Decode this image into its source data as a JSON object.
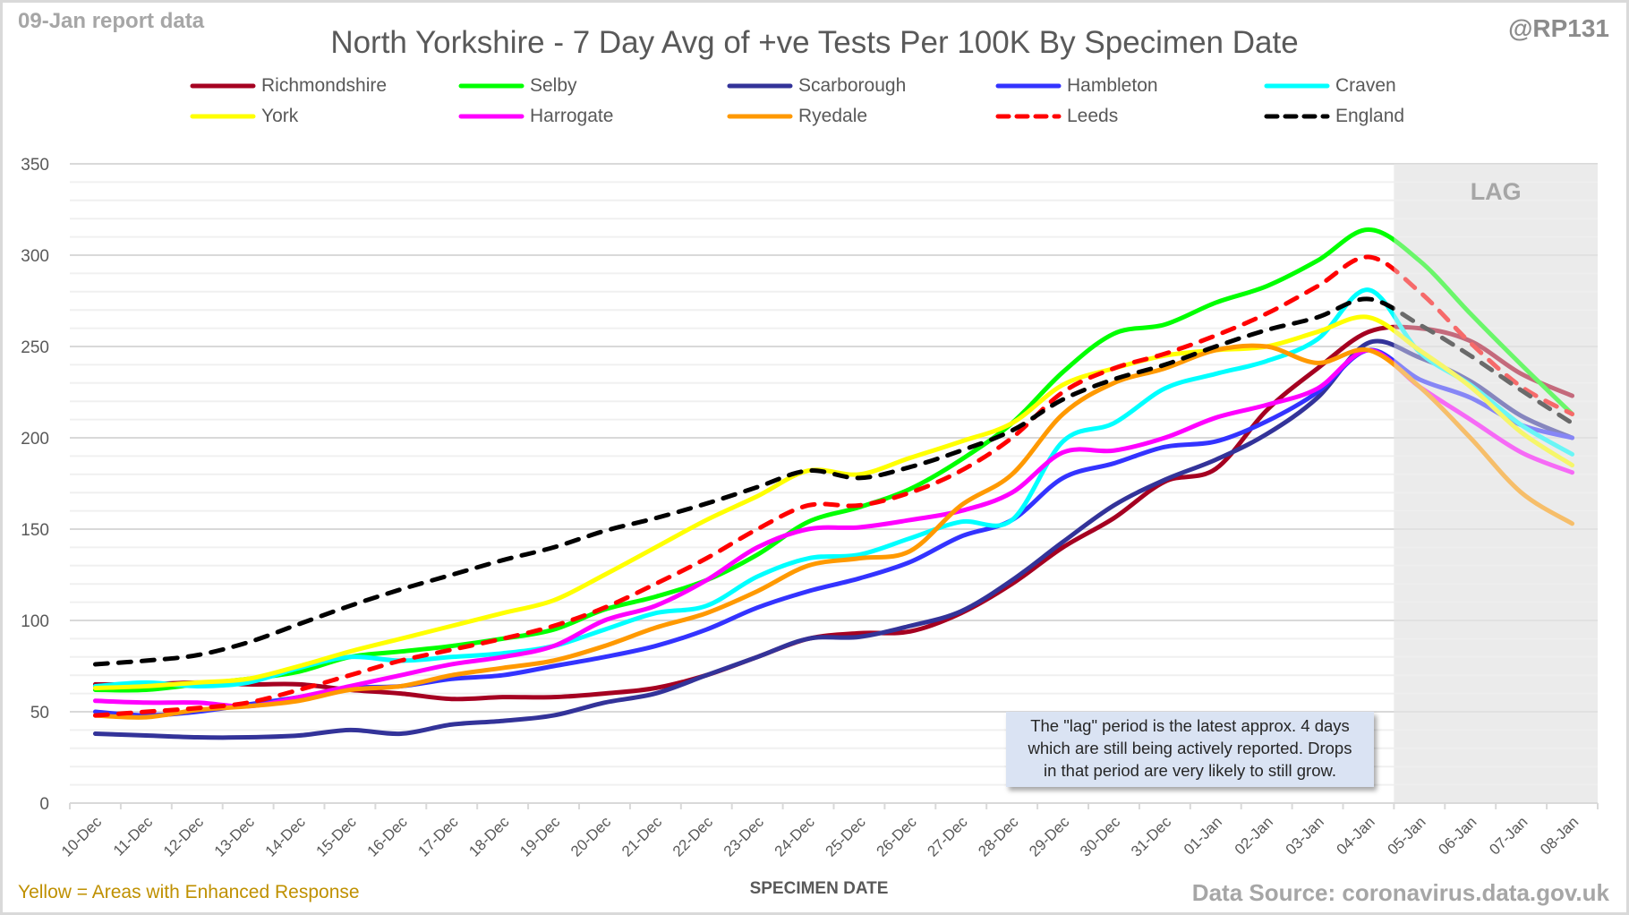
{
  "header": {
    "report_date": "09-Jan report data",
    "handle": "@RP131"
  },
  "footer": {
    "note": "Yellow = Areas with Enhanced Response",
    "source": "Data Source: coronavirus.data.gov.uk"
  },
  "annotation": {
    "lines": [
      "The \"lag\" period is the latest approx. 4 days",
      "which are still being actively reported.  Drops",
      "in that period are very likely to still grow."
    ]
  },
  "chart_data": {
    "type": "line",
    "title": "North Yorkshire - 7 Day Avg of +ve Tests Per 100K By Specimen Date",
    "xlabel": "SPECIMEN DATE",
    "ylabel": "",
    "ylim": [
      0,
      350
    ],
    "y_ticks": [
      0,
      50,
      100,
      150,
      200,
      250,
      300,
      350
    ],
    "y_minor_step": 10,
    "grid": true,
    "legend_position": "top",
    "lag_region": {
      "label": "LAG",
      "start": "05-Jan",
      "end": "08-Jan",
      "color": "#ebebeb"
    },
    "categories": [
      "10-Dec",
      "11-Dec",
      "12-Dec",
      "13-Dec",
      "14-Dec",
      "15-Dec",
      "16-Dec",
      "17-Dec",
      "18-Dec",
      "19-Dec",
      "20-Dec",
      "21-Dec",
      "22-Dec",
      "23-Dec",
      "24-Dec",
      "25-Dec",
      "26-Dec",
      "27-Dec",
      "28-Dec",
      "29-Dec",
      "30-Dec",
      "31-Dec",
      "01-Jan",
      "02-Jan",
      "03-Jan",
      "04-Jan",
      "05-Jan",
      "06-Jan",
      "07-Jan",
      "08-Jan"
    ],
    "series": [
      {
        "name": "Richmondshire",
        "color": "#a50021",
        "dash": false,
        "values": [
          65,
          65,
          66,
          65,
          65,
          62,
          60,
          57,
          58,
          58,
          60,
          63,
          70,
          80,
          90,
          93,
          94,
          104,
          120,
          140,
          156,
          176,
          183,
          215,
          238,
          258,
          260,
          253,
          235,
          223
        ]
      },
      {
        "name": "Selby",
        "color": "#00ff00",
        "dash": false,
        "values": [
          62,
          62,
          65,
          68,
          72,
          80,
          83,
          86,
          90,
          95,
          106,
          113,
          122,
          136,
          154,
          162,
          172,
          188,
          208,
          236,
          257,
          262,
          274,
          283,
          297,
          314,
          297,
          268,
          240,
          213
        ]
      },
      {
        "name": "Scarborough",
        "color": "#333399",
        "dash": false,
        "values": [
          38,
          37,
          36,
          36,
          37,
          40,
          38,
          43,
          45,
          48,
          55,
          60,
          70,
          80,
          90,
          91,
          97,
          105,
          122,
          143,
          163,
          177,
          188,
          202,
          222,
          252,
          244,
          231,
          212,
          200
        ]
      },
      {
        "name": "Hambleton",
        "color": "#3333ff",
        "dash": false,
        "values": [
          50,
          48,
          50,
          54,
          58,
          63,
          64,
          68,
          70,
          75,
          80,
          86,
          95,
          107,
          116,
          123,
          132,
          146,
          155,
          178,
          186,
          195,
          198,
          209,
          225,
          248,
          232,
          222,
          207,
          200
        ]
      },
      {
        "name": "Craven",
        "color": "#00ffff",
        "dash": false,
        "values": [
          64,
          66,
          64,
          66,
          74,
          80,
          78,
          80,
          82,
          86,
          95,
          104,
          108,
          124,
          134,
          136,
          145,
          154,
          155,
          198,
          208,
          227,
          235,
          242,
          254,
          281,
          247,
          229,
          207,
          191
        ]
      },
      {
        "name": "York",
        "color": "#ffff00",
        "dash": false,
        "values": [
          63,
          64,
          66,
          68,
          75,
          83,
          90,
          97,
          104,
          111,
          125,
          140,
          155,
          168,
          182,
          180,
          189,
          198,
          208,
          229,
          238,
          245,
          248,
          250,
          258,
          266,
          248,
          228,
          203,
          185
        ]
      },
      {
        "name": "Harrogate",
        "color": "#ff00ff",
        "dash": false,
        "values": [
          56,
          55,
          55,
          53,
          58,
          64,
          70,
          76,
          80,
          86,
          100,
          108,
          122,
          140,
          150,
          151,
          155,
          160,
          170,
          192,
          193,
          200,
          211,
          218,
          227,
          248,
          228,
          210,
          192,
          181
        ]
      },
      {
        "name": "Ryedale",
        "color": "#ff9900",
        "dash": false,
        "values": [
          48,
          47,
          51,
          53,
          56,
          62,
          64,
          70,
          74,
          78,
          86,
          96,
          104,
          116,
          130,
          134,
          138,
          163,
          180,
          213,
          230,
          238,
          248,
          250,
          241,
          248,
          228,
          200,
          170,
          153
        ]
      },
      {
        "name": "Leeds",
        "color": "#ff0000",
        "dash": true,
        "values": [
          48,
          50,
          52,
          55,
          62,
          70,
          78,
          84,
          90,
          97,
          107,
          120,
          134,
          150,
          163,
          163,
          170,
          182,
          200,
          225,
          238,
          246,
          256,
          268,
          283,
          299,
          280,
          252,
          228,
          213
        ]
      },
      {
        "name": "England",
        "color": "#000000",
        "dash": true,
        "values": [
          76,
          78,
          81,
          88,
          98,
          108,
          117,
          125,
          133,
          140,
          149,
          156,
          164,
          173,
          182,
          178,
          184,
          193,
          204,
          221,
          232,
          240,
          250,
          259,
          266,
          276,
          262,
          245,
          226,
          208
        ]
      }
    ]
  }
}
